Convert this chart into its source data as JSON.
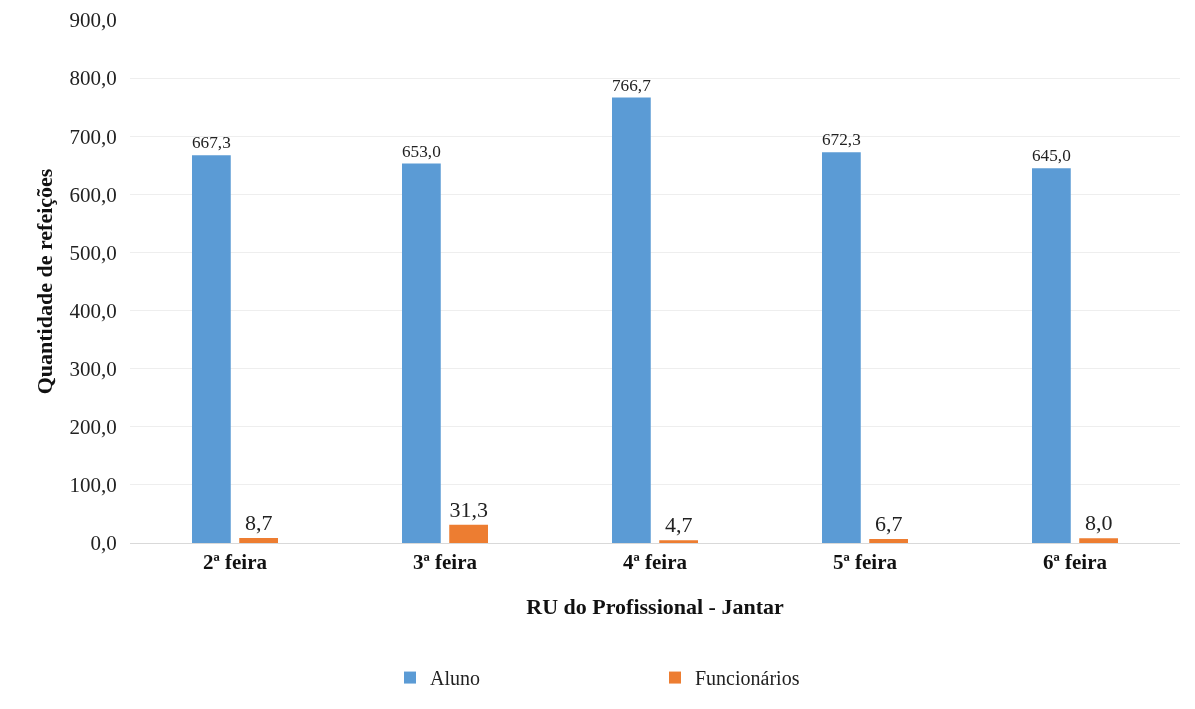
{
  "chart_data": {
    "type": "bar",
    "categories": [
      "2ª feira",
      "3ª feira",
      "4ª feira",
      "5ª feira",
      "6ª feira"
    ],
    "xlabel": "RU do Profissional - Jantar",
    "ylabel": "Quantidade de refeições",
    "series": [
      {
        "name": "Aluno",
        "color": "#5b9bd5",
        "values": [
          667.3,
          653.0,
          766.7,
          672.3,
          645.0
        ],
        "value_labels": [
          "667,3",
          "653,0",
          "766,7",
          "672,3",
          "645,0"
        ]
      },
      {
        "name": "Funcionários",
        "color": "#ed7d31",
        "values": [
          8.7,
          31.3,
          4.7,
          6.7,
          8.0
        ],
        "value_labels": [
          "8,7",
          "31,3",
          "4,7",
          "6,7",
          "8,0"
        ]
      }
    ],
    "ylim": [
      0,
      900
    ],
    "yticks": [
      {
        "value": 0,
        "label": "0,0"
      },
      {
        "value": 100,
        "label": "100,0"
      },
      {
        "value": 200,
        "label": "200,0"
      },
      {
        "value": 300,
        "label": "300,0"
      },
      {
        "value": 400,
        "label": "400,0"
      },
      {
        "value": 500,
        "label": "500,0"
      },
      {
        "value": 600,
        "label": "600,0"
      },
      {
        "value": 700,
        "label": "700,0"
      },
      {
        "value": 800,
        "label": "800,0"
      },
      {
        "value": 900,
        "label": "900,0"
      }
    ],
    "grid": "y",
    "legend": "bottom"
  }
}
